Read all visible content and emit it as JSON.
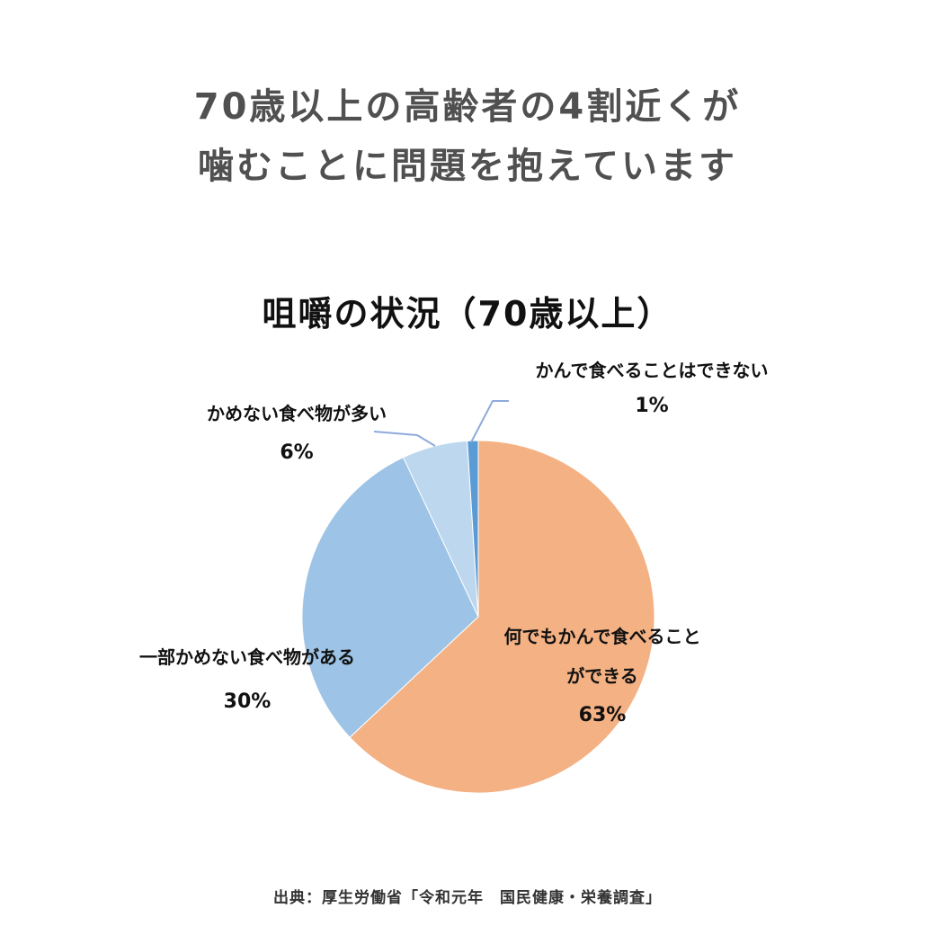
{
  "headline": {
    "line1": "70歳以上の高齢者の4割近くが",
    "line2": "噛むことに問題を抱えています"
  },
  "source": "出典：厚生労働省「令和元年　国民健康・栄養調査」",
  "chart_data": {
    "type": "pie",
    "title": "咀嚼の状況（70歳以上）",
    "slices": [
      {
        "label": "何でもかんで食べることができる",
        "value": 63,
        "value_label": "63%",
        "color": "#F4B183"
      },
      {
        "label": "一部かめない食べ物がある",
        "value": 30,
        "value_label": "30%",
        "color": "#9DC3E6"
      },
      {
        "label": "かめない食べ物が多い",
        "value": 6,
        "value_label": "6%",
        "color": "#BDD7EE"
      },
      {
        "label": "かんで食べることはできない",
        "value": 1,
        "value_label": "1%",
        "color": "#5B9BD5"
      }
    ],
    "labels_display": {
      "can_eat_line1": "何でもかんで食べること",
      "can_eat_line2": "ができる"
    },
    "leader_line_color": "#8FAADC",
    "legend": "none"
  }
}
